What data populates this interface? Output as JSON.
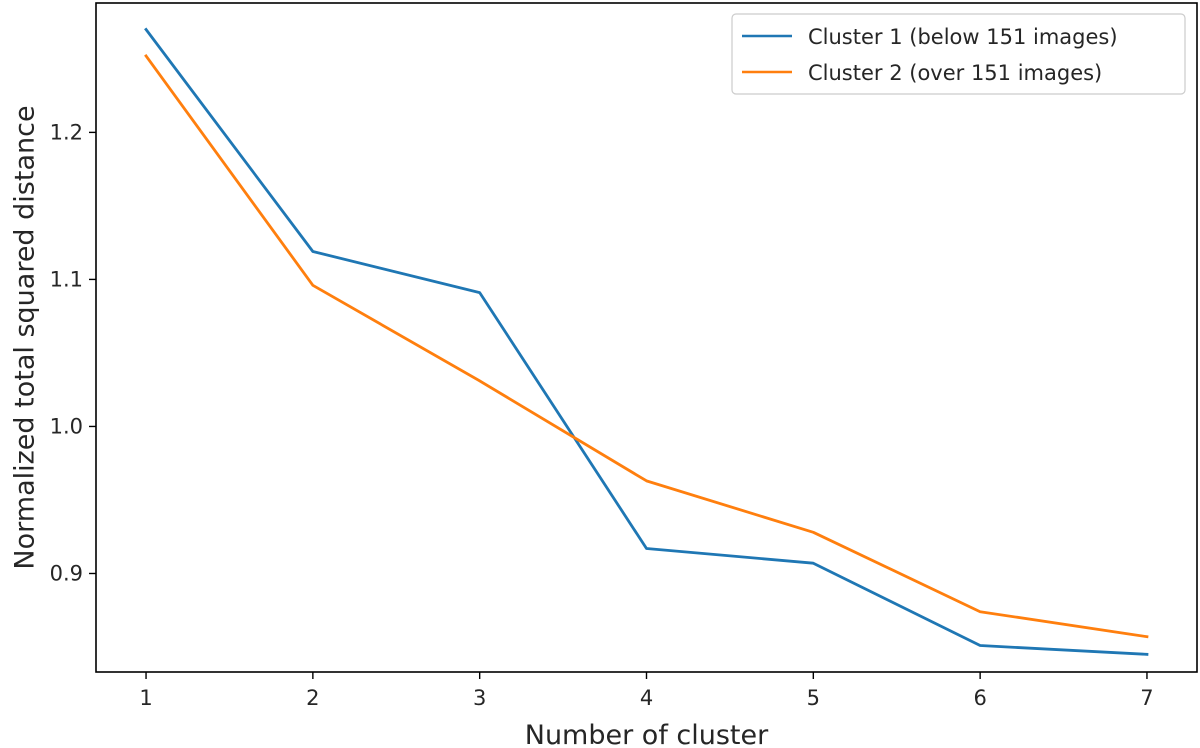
{
  "chart_data": {
    "type": "line",
    "title": "",
    "xlabel": "Number of cluster",
    "ylabel": "Normalized total squared distance",
    "x": [
      1,
      2,
      3,
      4,
      5,
      6,
      7
    ],
    "xlim": [
      0.7,
      7.3
    ],
    "ylim": [
      0.833,
      1.288
    ],
    "xticks": [
      1,
      2,
      3,
      4,
      5,
      6,
      7
    ],
    "yticks": [
      0.9,
      1.0,
      1.1,
      1.2
    ],
    "ytick_labels": [
      "0.9",
      "1.0",
      "1.1",
      "1.2"
    ],
    "grid": false,
    "legend_position": "top-right",
    "series": [
      {
        "name": "Cluster 1 (below 151 images)",
        "color": "#1f77b4",
        "values": [
          1.27,
          1.119,
          1.091,
          0.917,
          0.907,
          0.851,
          0.845
        ]
      },
      {
        "name": "Cluster 2 (over 151 images)",
        "color": "#ff7f0e",
        "values": [
          1.252,
          1.096,
          1.031,
          0.963,
          0.928,
          0.874,
          0.857
        ]
      }
    ]
  }
}
